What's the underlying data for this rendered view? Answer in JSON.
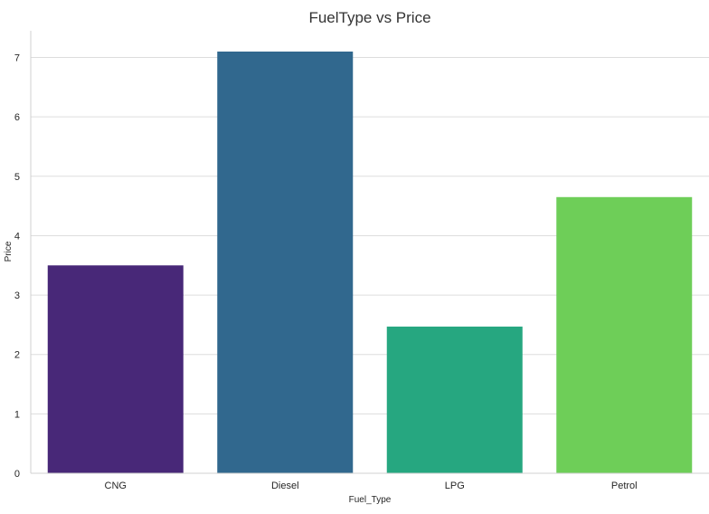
{
  "chart_data": {
    "type": "bar",
    "title": "FuelType vs Price",
    "xlabel": "Fuel_Type",
    "ylabel": "Price",
    "categories": [
      "CNG",
      "Diesel",
      "LPG",
      "Petrol"
    ],
    "values": [
      3.5,
      7.1,
      2.47,
      4.65
    ],
    "colors": [
      "#482878",
      "#31688e",
      "#26a780",
      "#6ece58"
    ],
    "ylim": [
      0,
      7.45
    ],
    "yticks": [
      0,
      1,
      2,
      3,
      4,
      5,
      6,
      7
    ],
    "grid": true,
    "legend": "none"
  }
}
